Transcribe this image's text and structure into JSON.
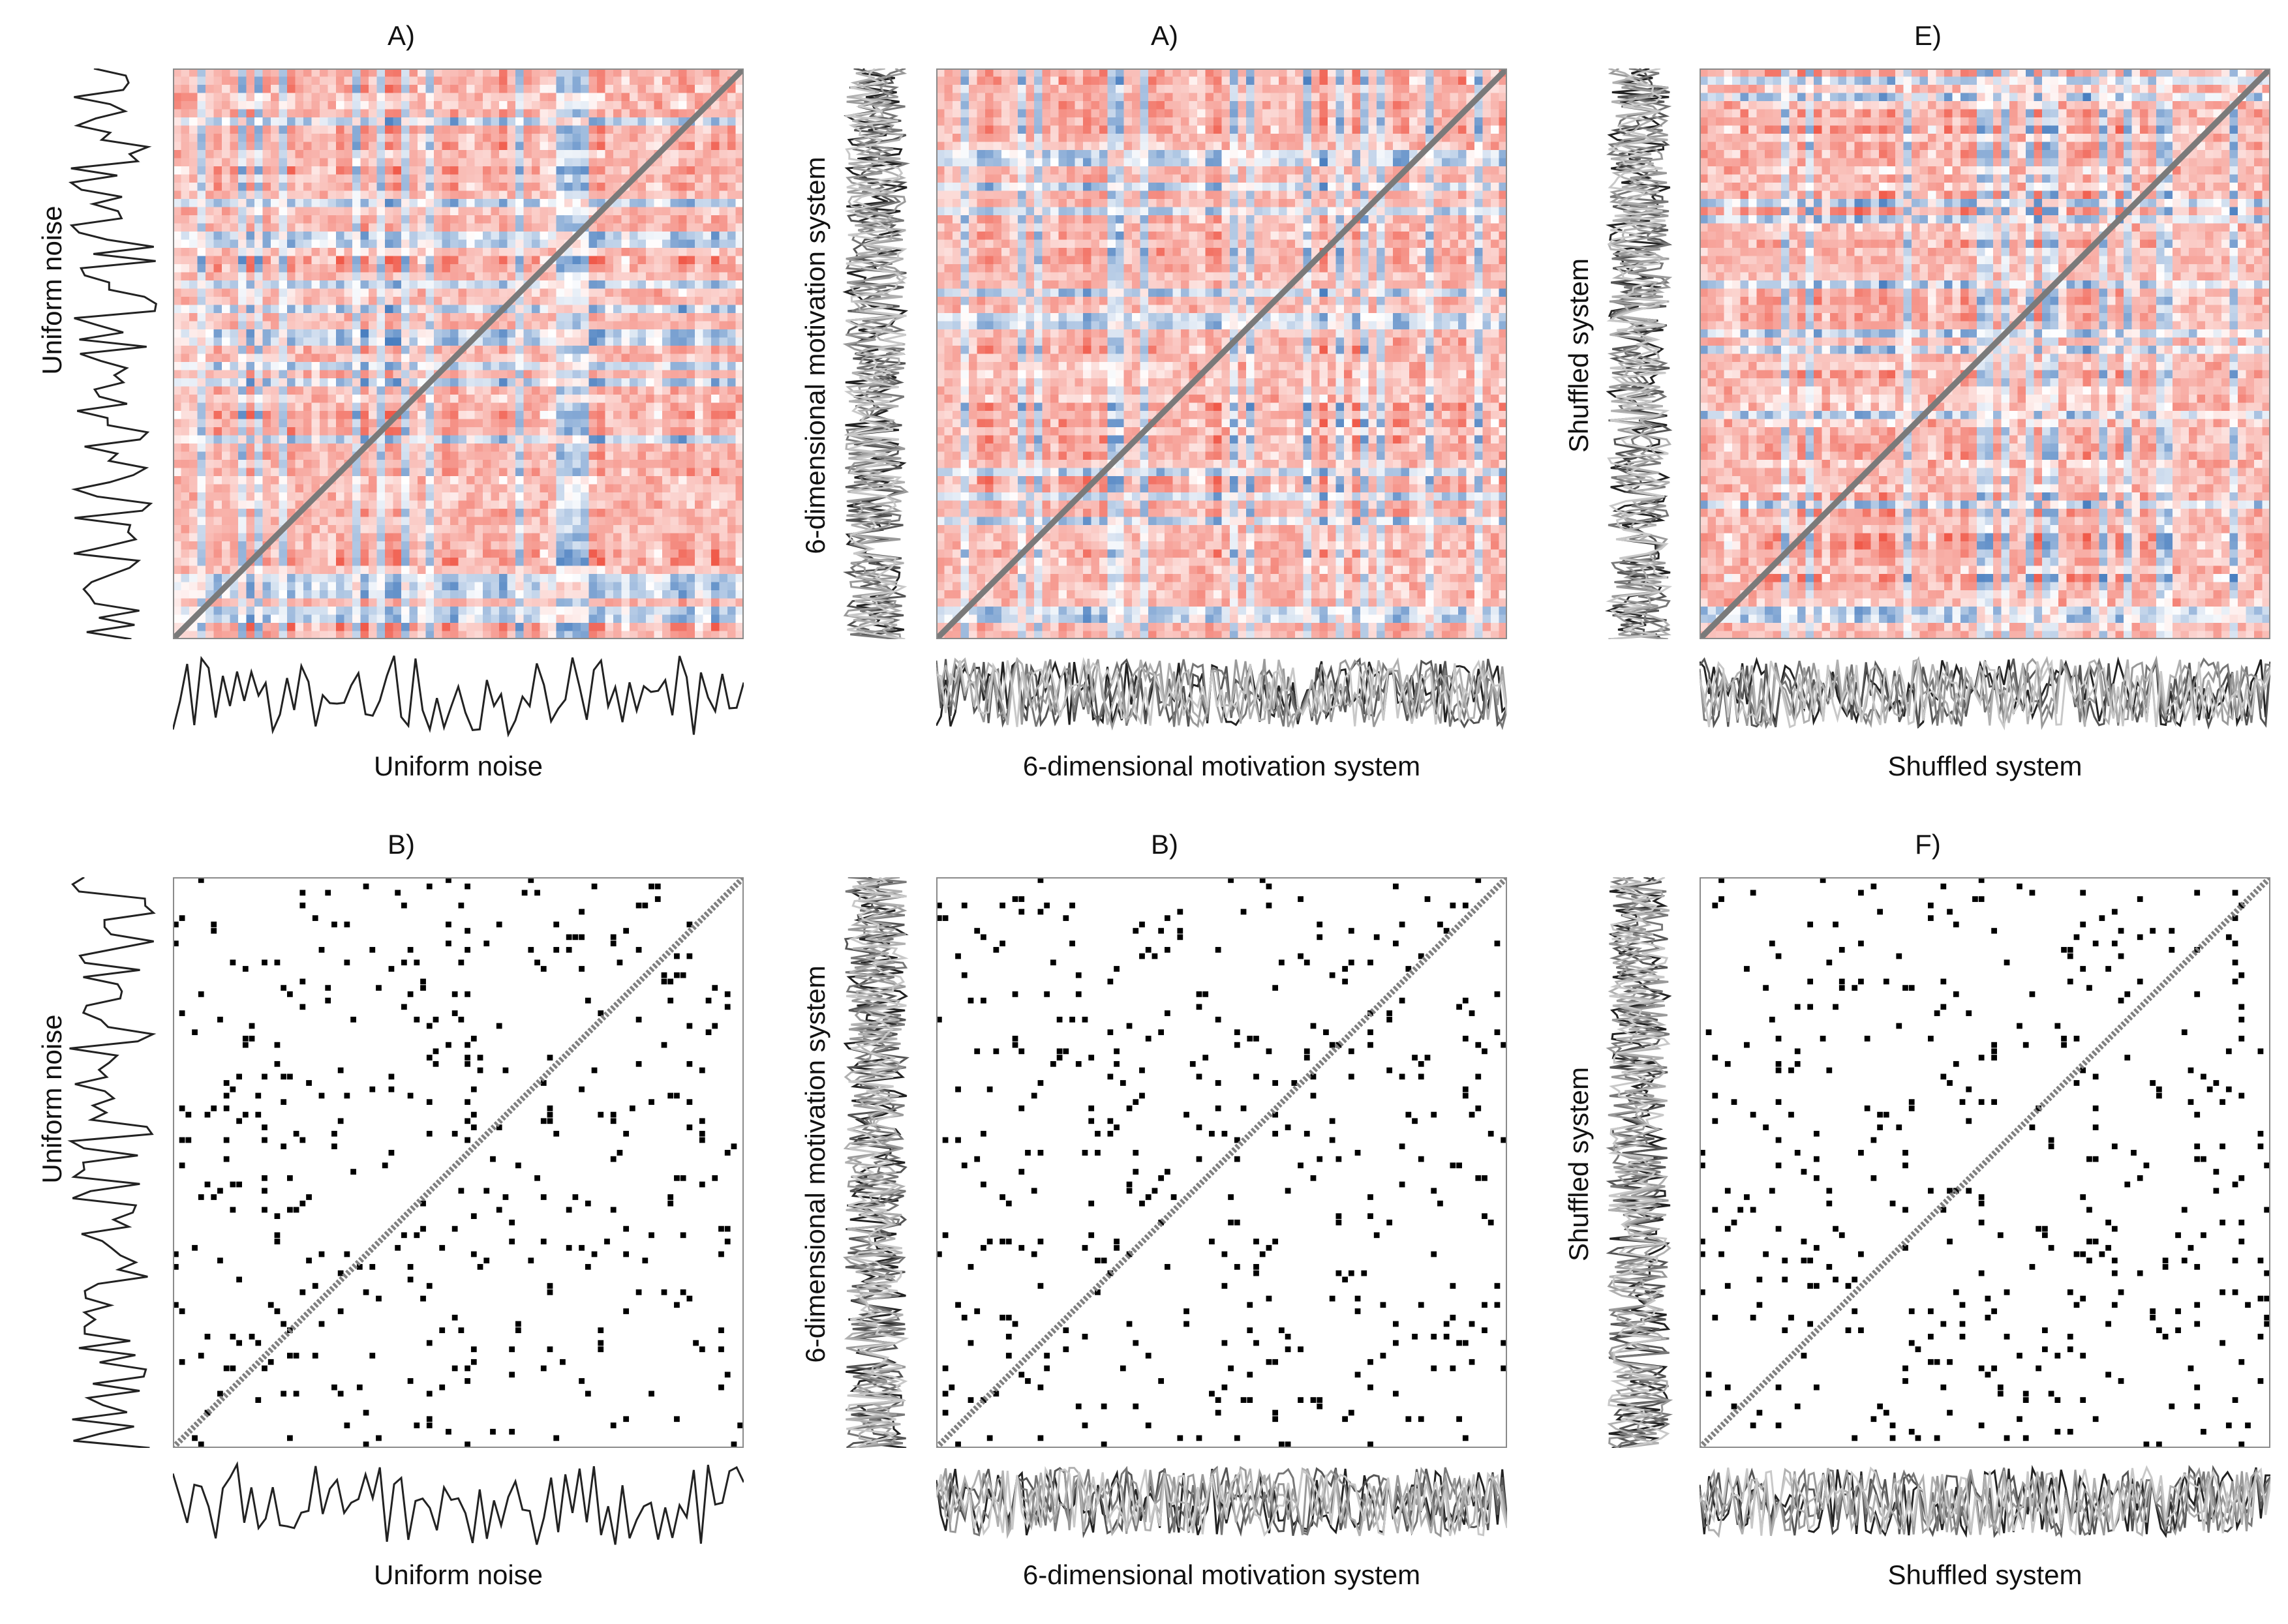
{
  "chart_data": [
    {
      "id": "p1",
      "type": "heatmap",
      "title": "A)",
      "xlabel": "Uniform noise",
      "ylabel": "Uniform noise",
      "style": "correlation",
      "series_lines": 1,
      "colors": {
        "low": "#4a7fc0",
        "mid": "#ffffff",
        "high": "#f05a4a"
      }
    },
    {
      "id": "p2",
      "type": "heatmap",
      "title": "A)",
      "xlabel": "6-dimensional motivation system",
      "ylabel": "6-dimensional motivation system",
      "style": "correlation",
      "series_lines": 6,
      "colors": {
        "low": "#4a7fc0",
        "mid": "#ffffff",
        "high": "#f05a4a"
      }
    },
    {
      "id": "p3",
      "type": "heatmap",
      "title": "E)",
      "xlabel": "Shuffled system",
      "ylabel": "Shuffled system",
      "style": "correlation",
      "series_lines": 6,
      "colors": {
        "low": "#4a7fc0",
        "mid": "#ffffff",
        "high": "#f05a4a"
      }
    },
    {
      "id": "p4",
      "type": "heatmap",
      "title": "B)",
      "xlabel": "Uniform noise",
      "ylabel": "Uniform noise",
      "style": "recurrence",
      "series_lines": 1,
      "colors": {
        "point": "#000000",
        "diagonal": "#808080"
      }
    },
    {
      "id": "p5",
      "type": "heatmap",
      "title": "B)",
      "xlabel": "6-dimensional motivation system",
      "ylabel": "6-dimensional motivation system",
      "style": "recurrence",
      "series_lines": 6,
      "colors": {
        "point": "#000000",
        "diagonal": "#808080"
      }
    },
    {
      "id": "p6",
      "type": "heatmap",
      "title": "F)",
      "xlabel": "Shuffled system",
      "ylabel": "Shuffled system",
      "style": "recurrence",
      "series_lines": 6,
      "colors": {
        "point": "#000000",
        "diagonal": "#808080"
      }
    }
  ]
}
